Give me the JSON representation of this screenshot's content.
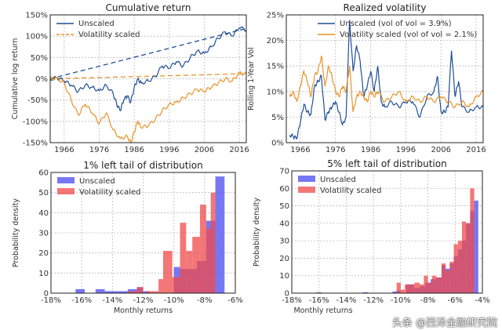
{
  "chart_data": [
    {
      "id": "cumret",
      "type": "line",
      "title": "Cumulative return",
      "xlabel": "",
      "ylabel": "Cumulative log return",
      "xlim": [
        1962,
        2018
      ],
      "ylim": [
        -150,
        150
      ],
      "xticks": [
        1966,
        1976,
        1986,
        1996,
        2006,
        2016
      ],
      "xtick_labels": [
        "1966",
        "1976",
        "1986",
        "1996",
        "2006",
        "2016"
      ],
      "yticks": [
        -150,
        -100,
        -50,
        0,
        50,
        100,
        150
      ],
      "ytick_labels": [
        "-150%",
        "-100%",
        "-50%",
        "0%",
        "50%",
        "100%",
        "150%"
      ],
      "grid": true,
      "legend_position": "top-left",
      "series": [
        {
          "name": "Unscaled",
          "color": "#1f4e96",
          "x": [
            1962,
            1964,
            1966,
            1968,
            1970,
            1972,
            1974,
            1976,
            1978,
            1980,
            1981,
            1982,
            1983,
            1984,
            1985,
            1986,
            1987,
            1988,
            1990,
            1992,
            1994,
            1996,
            1998,
            2000,
            2002,
            2004,
            2006,
            2008,
            2010,
            2012,
            2014,
            2016,
            2018
          ],
          "y": [
            0,
            2,
            -5,
            -15,
            -30,
            -15,
            -20,
            -28,
            -15,
            -35,
            -60,
            -75,
            -50,
            -40,
            -55,
            -20,
            0,
            -10,
            -5,
            5,
            30,
            25,
            40,
            30,
            50,
            65,
            60,
            75,
            95,
            110,
            100,
            120,
            115
          ]
        },
        {
          "name": "Volatility scaled",
          "color": "#e8942a",
          "x": [
            1962,
            1964,
            1966,
            1968,
            1970,
            1972,
            1974,
            1976,
            1978,
            1980,
            1982,
            1984,
            1985,
            1986,
            1987,
            1988,
            1990,
            1992,
            1994,
            1996,
            1998,
            2000,
            2002,
            2004,
            2006,
            2008,
            2010,
            2012,
            2014,
            2016,
            2018
          ],
          "y": [
            0,
            2,
            -10,
            -50,
            -85,
            -60,
            -80,
            -105,
            -80,
            -120,
            -140,
            -135,
            -150,
            -125,
            -100,
            -115,
            -110,
            -95,
            -75,
            -60,
            -55,
            -45,
            -35,
            -25,
            -30,
            -20,
            -10,
            0,
            -5,
            15,
            10
          ]
        }
      ],
      "trend_lines": [
        {
          "name": "Unscaled trend",
          "color": "#1f4e96",
          "x": [
            1962,
            2018
          ],
          "y": [
            0,
            118
          ]
        },
        {
          "name": "Volatility scaled trend",
          "color": "#e8942a",
          "x": [
            1962,
            2018
          ],
          "y": [
            0,
            12
          ]
        }
      ],
      "legend": [
        "Unscaled",
        "Volatility scaled"
      ]
    },
    {
      "id": "realvol",
      "type": "line",
      "title": "Realized volatility",
      "xlabel": "",
      "ylabel": "Rolling 1-Year Vol",
      "xlim": [
        1962,
        2018
      ],
      "ylim": [
        0,
        25
      ],
      "xticks": [
        1966,
        1976,
        1986,
        1996,
        2006,
        2016
      ],
      "xtick_labels": [
        "1966",
        "1976",
        "1986",
        "1996",
        "2006",
        "2016"
      ],
      "yticks": [
        0,
        5,
        10,
        15,
        20,
        25
      ],
      "ytick_labels": [
        "0%",
        "5%",
        "10%",
        "15%",
        "20%",
        "25%"
      ],
      "grid": true,
      "legend_position": "top-right",
      "series": [
        {
          "name": "Unscaled (vol of vol = 3.9%)",
          "color": "#1f4e96",
          "x": [
            1963,
            1964,
            1965,
            1966,
            1967,
            1968,
            1969,
            1970,
            1971,
            1972,
            1973,
            1974,
            1975,
            1976,
            1977,
            1978,
            1979,
            1980,
            1981,
            1982,
            1983,
            1984,
            1985,
            1986,
            1987,
            1988,
            1989,
            1990,
            1992,
            1994,
            1996,
            1998,
            2000,
            2002,
            2004,
            2005,
            2006,
            2007,
            2008,
            2009,
            2010,
            2011,
            2012,
            2014,
            2016,
            2018
          ],
          "y": [
            1.5,
            1.2,
            0.8,
            4,
            7.5,
            6,
            5.5,
            11,
            12,
            13,
            4.5,
            6,
            7,
            8,
            6,
            3.5,
            5,
            24,
            14,
            19,
            16,
            9,
            11,
            14,
            10,
            15,
            8,
            7,
            8,
            7,
            8,
            8,
            5,
            9,
            10,
            13,
            6,
            6,
            7,
            18,
            9,
            12,
            7,
            6,
            7,
            7
          ]
        },
        {
          "name": "Volatility scaled (vol of vol = 2.1%)",
          "color": "#e8942a",
          "x": [
            1963,
            1964,
            1965,
            1966,
            1967,
            1968,
            1969,
            1970,
            1971,
            1972,
            1973,
            1974,
            1975,
            1976,
            1977,
            1978,
            1979,
            1980,
            1981,
            1982,
            1983,
            1984,
            1985,
            1986,
            1987,
            1988,
            1990,
            1992,
            1994,
            1996,
            1998,
            2000,
            2002,
            2004,
            2006,
            2008,
            2010,
            2012,
            2014,
            2016,
            2018
          ],
          "y": [
            9,
            10,
            8,
            11,
            14,
            12,
            9,
            13,
            14,
            17,
            11,
            15,
            13,
            10,
            9,
            11,
            10,
            15,
            6,
            9,
            10,
            9,
            8,
            10,
            9,
            10,
            8,
            9,
            10,
            8,
            9,
            8,
            9,
            8,
            9,
            8,
            7,
            8,
            7,
            9,
            10
          ]
        }
      ],
      "legend": [
        "Unscaled (vol of vol = 3.9%)",
        "Volatility scaled (vol of vol = 2.1%)"
      ]
    },
    {
      "id": "tail1",
      "type": "bar",
      "title": "1% left tail of distribution",
      "xlabel": "Monthly returns",
      "ylabel": "Probability density",
      "xlim": [
        -18,
        -6
      ],
      "ylim": [
        0,
        60
      ],
      "xticks": [
        -18,
        -16,
        -14,
        -12,
        -10,
        -8,
        -6
      ],
      "xtick_labels": [
        "-18%",
        "-16%",
        "-14%",
        "-12%",
        "-10%",
        "-8%",
        "-6%"
      ],
      "yticks": [
        0,
        10,
        20,
        30,
        40,
        50,
        60
      ],
      "ytick_labels": [
        "0",
        "10",
        "20",
        "30",
        "40",
        "50",
        "60"
      ],
      "grid": true,
      "legend_position": "top-left",
      "series": [
        {
          "name": "Unscaled",
          "color": "#4a4af0",
          "bins": [
            [
              -16.4,
              -15.8,
              2
            ],
            [
              -15.1,
              -14.5,
              2
            ],
            [
              -14.5,
              -13.7,
              1
            ],
            [
              -13.7,
              -13.0,
              1
            ],
            [
              -13.0,
              -12.4,
              2
            ],
            [
              -12.4,
              -12.0,
              3
            ],
            [
              -12.0,
              -11.6,
              1
            ],
            [
              -10.0,
              -9.6,
              13
            ],
            [
              -9.6,
              -9.2,
              12
            ],
            [
              -9.2,
              -8.5,
              12
            ],
            [
              -8.5,
              -7.9,
              16
            ],
            [
              -7.9,
              -7.3,
              36
            ],
            [
              -7.3,
              -6.7,
              58
            ]
          ]
        },
        {
          "name": "Volatility scaled",
          "color": "#f04a4a",
          "bins": [
            [
              -13.0,
              -12.4,
              1
            ],
            [
              -12.4,
              -12.0,
              3
            ],
            [
              -11.8,
              -11.0,
              1
            ],
            [
              -11.0,
              -10.7,
              7
            ],
            [
              -10.7,
              -10.1,
              21
            ],
            [
              -10.1,
              -9.6,
              8
            ],
            [
              -9.6,
              -9.2,
              35
            ],
            [
              -9.2,
              -8.8,
              21
            ],
            [
              -8.8,
              -8.3,
              28
            ],
            [
              -8.3,
              -7.9,
              44
            ],
            [
              -7.9,
              -7.6,
              32
            ],
            [
              -7.6,
              -7.3,
              50
            ]
          ]
        }
      ],
      "legend": [
        "Unscaled",
        "Volatility scaled"
      ]
    },
    {
      "id": "tail5",
      "type": "bar",
      "title": "5% left tail of distribution",
      "xlabel": "Monthly returns",
      "ylabel": "Probability density",
      "xlim": [
        -18,
        -4
      ],
      "ylim": [
        0,
        70
      ],
      "xticks": [
        -18,
        -16,
        -14,
        -12,
        -10,
        -8,
        -6,
        -4
      ],
      "xtick_labels": [
        "-18%",
        "-16%",
        "-14%",
        "-12%",
        "-10%",
        "-8%",
        "-6%",
        "-4%"
      ],
      "yticks": [
        0,
        10,
        20,
        30,
        40,
        50,
        60,
        70
      ],
      "ytick_labels": [
        "0",
        "10",
        "20",
        "30",
        "40",
        "50",
        "60",
        "70"
      ],
      "grid": true,
      "legend_position": "top-left",
      "series": [
        {
          "name": "Unscaled",
          "color": "#4a4af0",
          "bins": [
            [
              -16.2,
              -15.8,
              0.5
            ],
            [
              -12.8,
              -12.4,
              0.5
            ],
            [
              -10.6,
              -10.3,
              1
            ],
            [
              -10.3,
              -10.0,
              1.5
            ],
            [
              -9.6,
              -9.0,
              5
            ],
            [
              -9.0,
              -8.6,
              3
            ],
            [
              -8.6,
              -8.2,
              4
            ],
            [
              -8.2,
              -7.8,
              6
            ],
            [
              -7.8,
              -7.4,
              8
            ],
            [
              -7.4,
              -7.0,
              9
            ],
            [
              -7.0,
              -6.7,
              16
            ],
            [
              -6.7,
              -6.4,
              14
            ],
            [
              -6.4,
              -6.1,
              17
            ],
            [
              -6.1,
              -5.8,
              21
            ],
            [
              -5.8,
              -5.5,
              25
            ],
            [
              -5.5,
              -5.2,
              30
            ],
            [
              -5.2,
              -4.9,
              40
            ],
            [
              -4.9,
              -4.6,
              47
            ],
            [
              -4.6,
              -4.3,
              53
            ]
          ]
        },
        {
          "name": "Volatility scaled",
          "color": "#f04a4a",
          "bins": [
            [
              -10.3,
              -10.0,
              6
            ],
            [
              -10.0,
              -9.7,
              2
            ],
            [
              -9.7,
              -9.3,
              5
            ],
            [
              -9.3,
              -9.0,
              5
            ],
            [
              -9.0,
              -8.6,
              6
            ],
            [
              -8.6,
              -8.3,
              5
            ],
            [
              -8.3,
              -8.0,
              10
            ],
            [
              -8.0,
              -7.7,
              6
            ],
            [
              -7.7,
              -7.4,
              10
            ],
            [
              -7.4,
              -7.0,
              9
            ],
            [
              -7.0,
              -6.7,
              17
            ],
            [
              -6.7,
              -6.4,
              13
            ],
            [
              -6.4,
              -6.1,
              18
            ],
            [
              -6.1,
              -5.8,
              28
            ],
            [
              -5.8,
              -5.5,
              30
            ],
            [
              -5.5,
              -5.2,
              41
            ],
            [
              -5.2,
              -4.9,
              40
            ],
            [
              -4.9,
              -4.6,
              60
            ]
          ]
        }
      ],
      "legend": [
        "Unscaled",
        "Volatility scaled"
      ]
    }
  ],
  "watermark": "头条 @西泽金融研究院"
}
